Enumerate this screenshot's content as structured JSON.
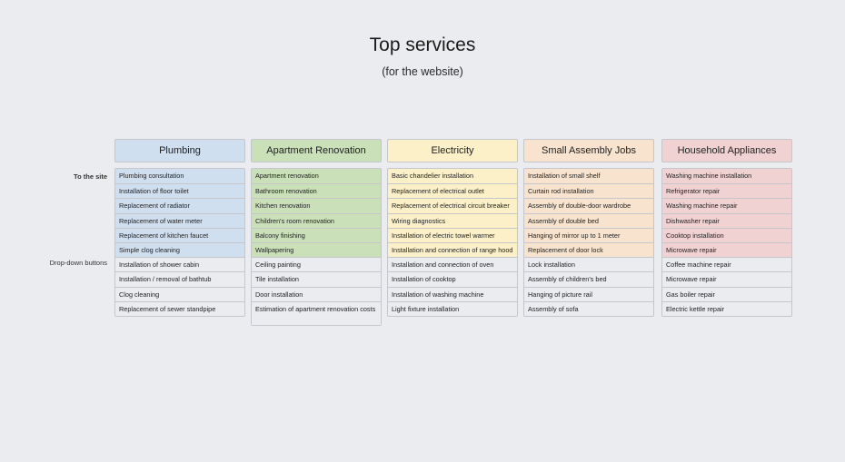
{
  "title": "Top services",
  "subtitle": "(for the website)",
  "labels": {
    "to_site": "To the site",
    "dropdown": "Drop-down buttons"
  },
  "columns": [
    {
      "name": "Plumbing",
      "site_items": [
        "Plumbing consultation",
        "Installation of floor toilet",
        "Replacement of radiator",
        "Replacement of water meter",
        "Replacement of kitchen faucet",
        "Simple clog cleaning"
      ],
      "dropdown_items": [
        "Installation of shower cabin",
        "Installation / removal of bathtub",
        "Clog cleaning",
        "Replacement of sewer standpipe"
      ]
    },
    {
      "name": "Apartment Renovation",
      "site_items": [
        "Apartment renovation",
        "Bathroom renovation",
        "Kitchen renovation",
        "Children's room renovation",
        "Balcony finishing",
        "Wallpapering"
      ],
      "dropdown_items": [
        "Ceiling painting",
        "Tile installation",
        "Door installation",
        "Estimation of apartment renovation costs"
      ]
    },
    {
      "name": "Electricity",
      "site_items": [
        "Basic chandelier installation",
        "Replacement of electrical outlet",
        "Replacement of electrical circuit breaker",
        "Wiring diagnostics",
        "Installation of electric towel warmer",
        "Installation and connection of range hood"
      ],
      "dropdown_items": [
        "Installation and connection of oven",
        "Installation of cooktop",
        "Installation of washing machine",
        "Light fixture installation"
      ]
    },
    {
      "name": "Small Assembly Jobs",
      "site_items": [
        "Installation of small shelf",
        "Curtain rod installation",
        "Assembly of double-door wardrobe",
        "Assembly of double bed",
        "Hanging of mirror up to 1 meter",
        "Replacement of door lock"
      ],
      "dropdown_items": [
        "Lock installation",
        "Assembly of children's bed",
        "Hanging of picture rail",
        "Assembly of sofa"
      ]
    },
    {
      "name": "Household Appliances",
      "site_items": [
        "Washing machine installation",
        "Refrigerator repair",
        "Washing machine repair",
        "Dishwasher repair",
        "Cooktop installation",
        "Microwave repair"
      ],
      "dropdown_items": [
        "Coffee machine repair",
        "Microwave repair",
        "Gas boiler repair",
        "Electric kettle repair"
      ]
    }
  ]
}
